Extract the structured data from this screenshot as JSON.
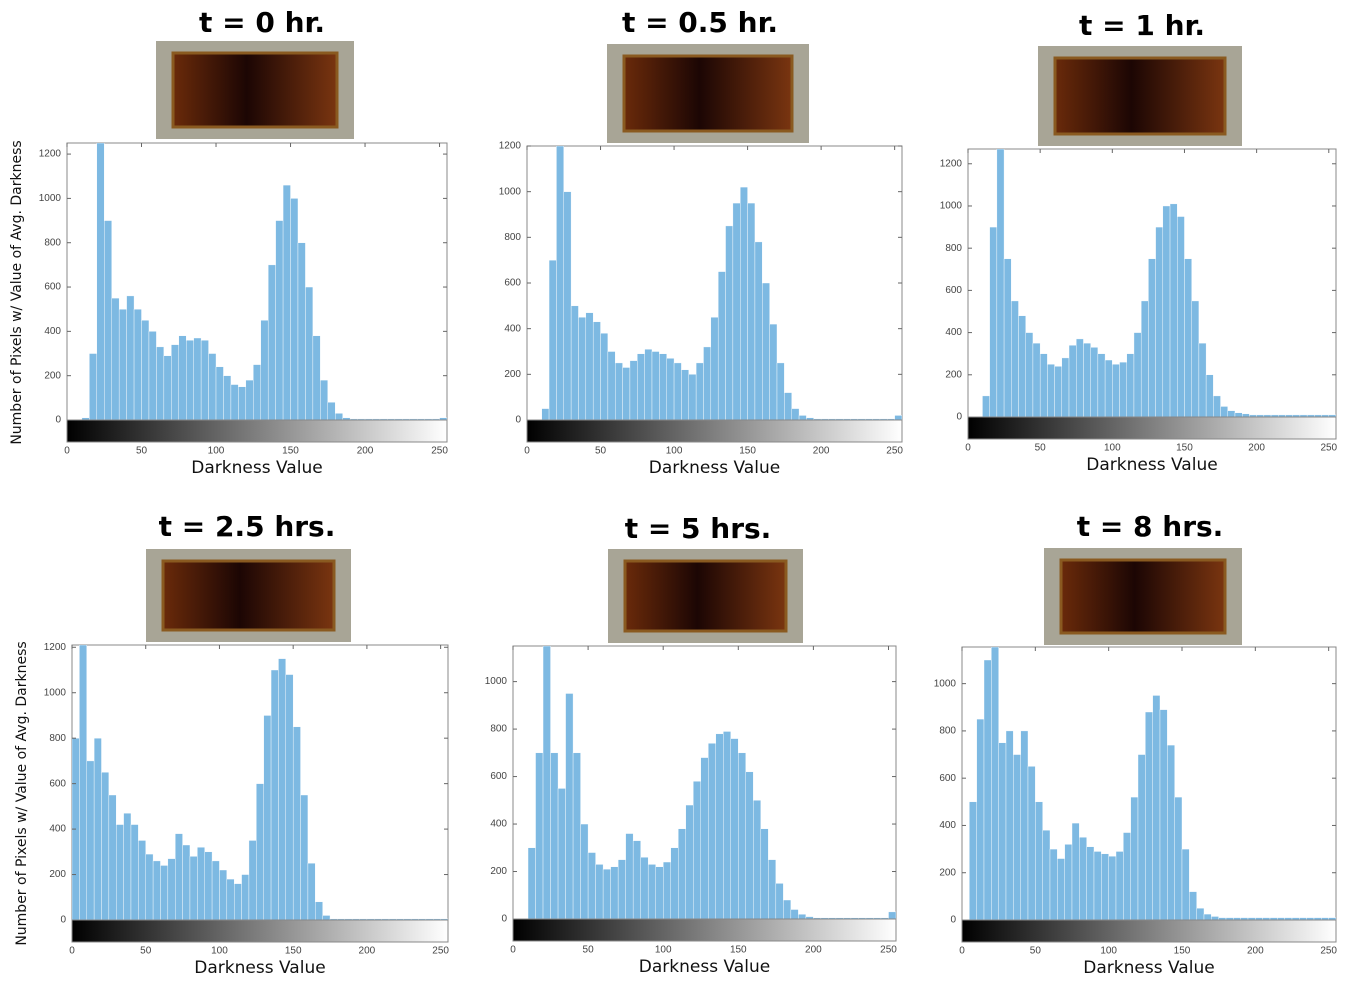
{
  "chart_data": [
    {
      "type": "histogram",
      "title": "t = 0 hr.",
      "xlabel": "Darkness Value",
      "ylabel": "Number of Pixels w/ Value of Avg. Darkness",
      "color": "#7db9e2",
      "bins": [
        0,
        5,
        10,
        15,
        20,
        25,
        30,
        35,
        40,
        45,
        50,
        55,
        60,
        65,
        70,
        75,
        80,
        85,
        90,
        95,
        100,
        105,
        110,
        115,
        120,
        125,
        130,
        135,
        140,
        145,
        150,
        155,
        160,
        165,
        170,
        175,
        180,
        185,
        190,
        195,
        200,
        205,
        210,
        215,
        220,
        225,
        230,
        235,
        240,
        245,
        250,
        255
      ],
      "values": [
        0,
        0,
        10,
        300,
        1250,
        900,
        550,
        500,
        560,
        500,
        450,
        400,
        330,
        290,
        340,
        380,
        360,
        370,
        360,
        300,
        240,
        200,
        160,
        150,
        180,
        250,
        450,
        700,
        900,
        1060,
        1000,
        800,
        600,
        380,
        180,
        80,
        30,
        10,
        5,
        5,
        5,
        5,
        5,
        5,
        5,
        5,
        5,
        5,
        5,
        5,
        10
      ],
      "xlim": [
        0,
        255
      ],
      "xticks": [
        0,
        50,
        100,
        150,
        200,
        250
      ],
      "ylim": [
        0,
        1250
      ],
      "yticks": [
        0,
        200,
        400,
        600,
        800,
        1000,
        1200
      ]
    },
    {
      "type": "histogram",
      "title": "t = 0.5 hr.",
      "xlabel": "Darkness Value",
      "color": "#7db9e2",
      "bins": [
        0,
        5,
        10,
        15,
        20,
        25,
        30,
        35,
        40,
        45,
        50,
        55,
        60,
        65,
        70,
        75,
        80,
        85,
        90,
        95,
        100,
        105,
        110,
        115,
        120,
        125,
        130,
        135,
        140,
        145,
        150,
        155,
        160,
        165,
        170,
        175,
        180,
        185,
        190,
        195,
        200,
        205,
        210,
        215,
        220,
        225,
        230,
        235,
        240,
        245,
        250,
        255
      ],
      "values": [
        0,
        0,
        50,
        700,
        1200,
        1000,
        500,
        450,
        470,
        430,
        380,
        300,
        250,
        230,
        260,
        290,
        310,
        300,
        290,
        270,
        250,
        220,
        200,
        250,
        320,
        450,
        650,
        850,
        950,
        1020,
        950,
        780,
        600,
        420,
        250,
        120,
        50,
        20,
        10,
        5,
        5,
        5,
        5,
        5,
        5,
        5,
        5,
        5,
        5,
        5,
        20
      ],
      "xlim": [
        0,
        255
      ],
      "xticks": [
        0,
        50,
        100,
        150,
        200,
        250
      ],
      "ylim": [
        0,
        1200
      ],
      "yticks": [
        0,
        200,
        400,
        600,
        800,
        1000,
        1200
      ]
    },
    {
      "type": "histogram",
      "title": "t = 1 hr.",
      "xlabel": "Darkness Value",
      "color": "#7db9e2",
      "bins": [
        0,
        5,
        10,
        15,
        20,
        25,
        30,
        35,
        40,
        45,
        50,
        55,
        60,
        65,
        70,
        75,
        80,
        85,
        90,
        95,
        100,
        105,
        110,
        115,
        120,
        125,
        130,
        135,
        140,
        145,
        150,
        155,
        160,
        165,
        170,
        175,
        180,
        185,
        190,
        195,
        200,
        205,
        210,
        215,
        220,
        225,
        230,
        235,
        240,
        245,
        250,
        255
      ],
      "values": [
        0,
        0,
        100,
        900,
        1270,
        750,
        550,
        480,
        400,
        350,
        300,
        250,
        240,
        280,
        340,
        370,
        350,
        330,
        300,
        270,
        250,
        260,
        300,
        400,
        550,
        750,
        900,
        1000,
        1010,
        950,
        750,
        550,
        350,
        200,
        100,
        50,
        30,
        20,
        15,
        10,
        10,
        10,
        10,
        10,
        10,
        10,
        10,
        10,
        10,
        10,
        10
      ],
      "xlim": [
        0,
        255
      ],
      "xticks": [
        0,
        50,
        100,
        150,
        200,
        250
      ],
      "ylim": [
        0,
        1270
      ],
      "yticks": [
        0,
        200,
        400,
        600,
        800,
        1000,
        1200
      ]
    },
    {
      "type": "histogram",
      "title": "t = 2.5 hrs.",
      "xlabel": "Darkness Value",
      "ylabel": "Number of Pixels w/ Value of Avg. Darkness",
      "color": "#7db9e2",
      "bins": [
        0,
        5,
        10,
        15,
        20,
        25,
        30,
        35,
        40,
        45,
        50,
        55,
        60,
        65,
        70,
        75,
        80,
        85,
        90,
        95,
        100,
        105,
        110,
        115,
        120,
        125,
        130,
        135,
        140,
        145,
        150,
        155,
        160,
        165,
        170,
        175,
        180,
        185,
        190,
        195,
        200,
        205,
        210,
        215,
        220,
        225,
        230,
        235,
        240,
        245,
        250,
        255
      ],
      "values": [
        800,
        1210,
        700,
        800,
        650,
        550,
        420,
        470,
        420,
        350,
        290,
        260,
        240,
        270,
        380,
        330,
        280,
        320,
        300,
        260,
        220,
        180,
        160,
        200,
        350,
        600,
        900,
        1100,
        1150,
        1080,
        850,
        550,
        250,
        80,
        20,
        5,
        5,
        5,
        5,
        5,
        5,
        5,
        5,
        5,
        5,
        5,
        5,
        5,
        5,
        5,
        5
      ],
      "xlim": [
        0,
        255
      ],
      "xticks": [
        0,
        50,
        100,
        150,
        200,
        250
      ],
      "ylim": [
        0,
        1210
      ],
      "yticks": [
        0,
        200,
        400,
        600,
        800,
        1000,
        1200
      ]
    },
    {
      "type": "histogram",
      "title": "t = 5 hrs.",
      "xlabel": "Darkness Value",
      "color": "#7db9e2",
      "bins": [
        0,
        5,
        10,
        15,
        20,
        25,
        30,
        35,
        40,
        45,
        50,
        55,
        60,
        65,
        70,
        75,
        80,
        85,
        90,
        95,
        100,
        105,
        110,
        115,
        120,
        125,
        130,
        135,
        140,
        145,
        150,
        155,
        160,
        165,
        170,
        175,
        180,
        185,
        190,
        195,
        200,
        205,
        210,
        215,
        220,
        225,
        230,
        235,
        240,
        245,
        250,
        255
      ],
      "values": [
        0,
        0,
        300,
        700,
        1150,
        700,
        550,
        950,
        700,
        400,
        280,
        230,
        210,
        220,
        250,
        360,
        330,
        260,
        230,
        220,
        240,
        300,
        380,
        480,
        580,
        680,
        740,
        780,
        790,
        760,
        700,
        620,
        500,
        380,
        250,
        150,
        80,
        40,
        20,
        10,
        5,
        5,
        5,
        5,
        5,
        5,
        5,
        5,
        5,
        5,
        30
      ],
      "xlim": [
        0,
        255
      ],
      "xticks": [
        0,
        50,
        100,
        150,
        200,
        250
      ],
      "ylim": [
        0,
        1150
      ],
      "yticks": [
        0,
        200,
        400,
        600,
        800,
        1000
      ]
    },
    {
      "type": "histogram",
      "title": "t = 8 hrs.",
      "xlabel": "Darkness Value",
      "color": "#7db9e2",
      "bins": [
        0,
        5,
        10,
        15,
        20,
        25,
        30,
        35,
        40,
        45,
        50,
        55,
        60,
        65,
        70,
        75,
        80,
        85,
        90,
        95,
        100,
        105,
        110,
        115,
        120,
        125,
        130,
        135,
        140,
        145,
        150,
        155,
        160,
        165,
        170,
        175,
        180,
        185,
        190,
        195,
        200,
        205,
        210,
        215,
        220,
        225,
        230,
        235,
        240,
        245,
        250,
        255
      ],
      "values": [
        0,
        500,
        850,
        1100,
        1155,
        750,
        800,
        700,
        800,
        650,
        500,
        380,
        300,
        260,
        320,
        410,
        350,
        310,
        290,
        280,
        270,
        290,
        370,
        520,
        700,
        880,
        950,
        890,
        740,
        520,
        300,
        120,
        50,
        25,
        15,
        10,
        10,
        10,
        10,
        10,
        10,
        10,
        10,
        10,
        10,
        10,
        10,
        10,
        10,
        10,
        10
      ],
      "xlim": [
        0,
        255
      ],
      "xticks": [
        0,
        50,
        100,
        150,
        200,
        250
      ],
      "ylim": [
        0,
        1155
      ],
      "yticks": [
        0,
        200,
        400,
        600,
        800,
        1000
      ]
    }
  ]
}
